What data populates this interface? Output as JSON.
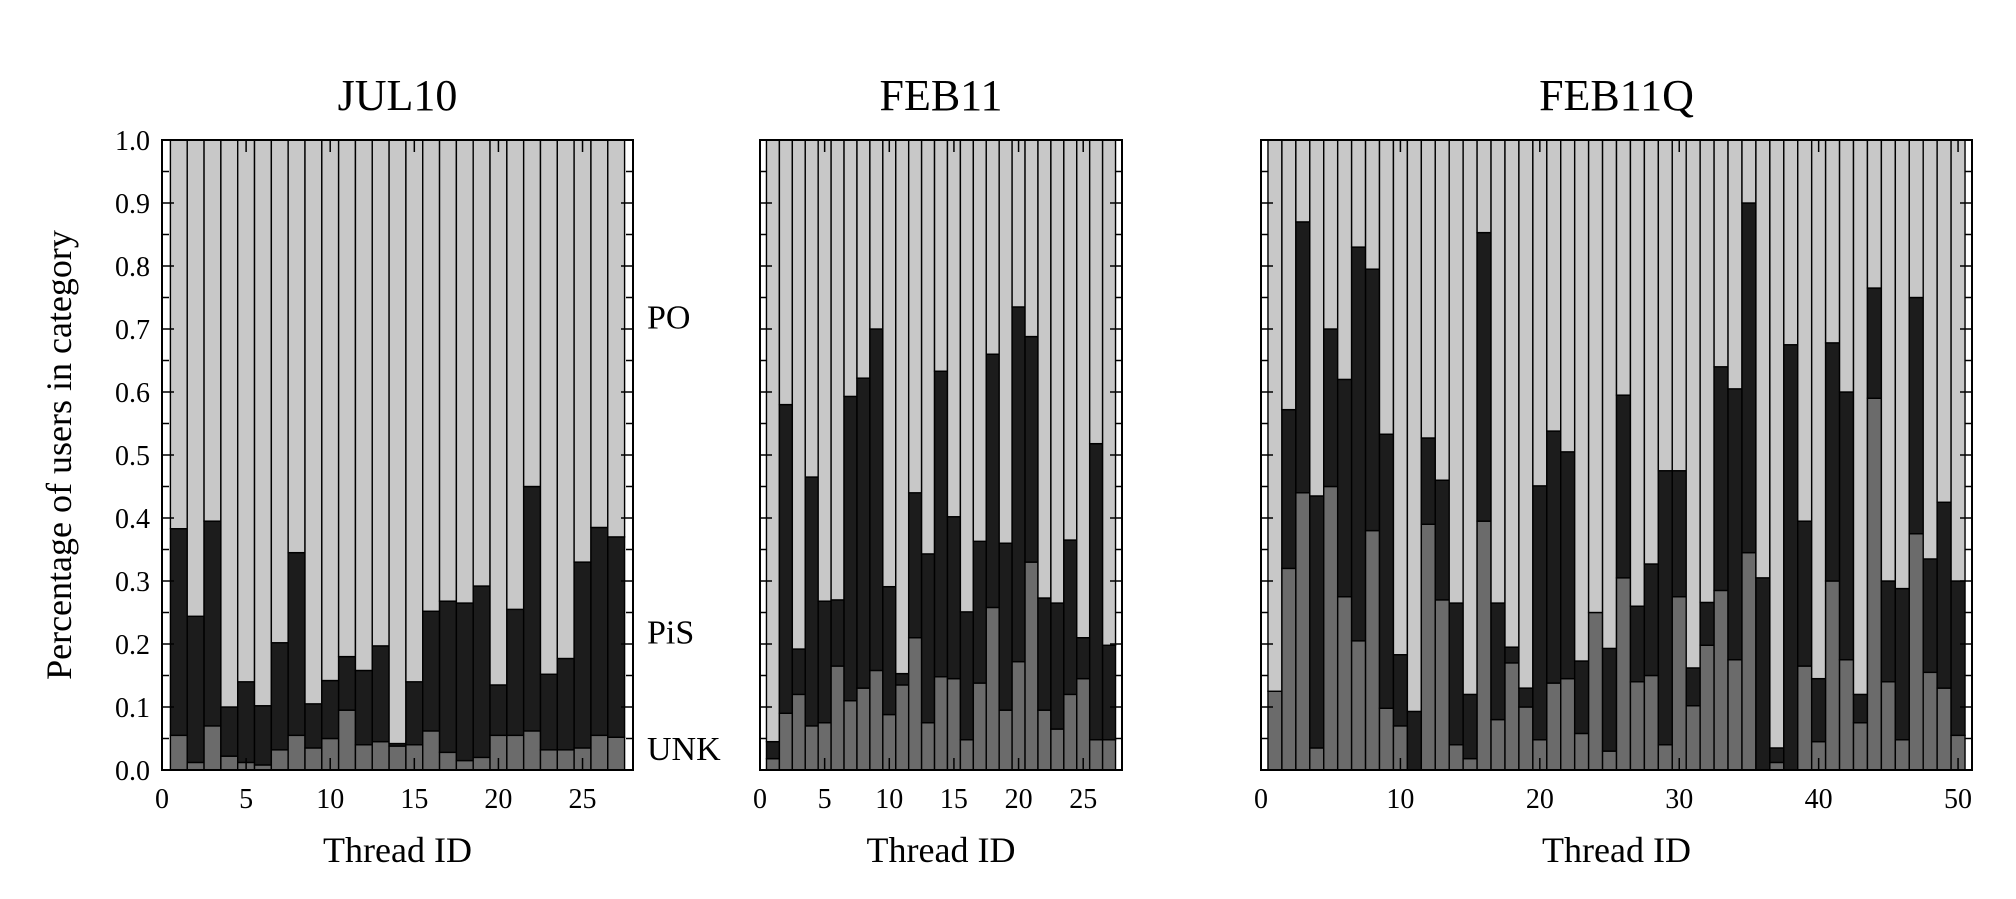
{
  "colors": {
    "PO": "#c8c8c8",
    "PiS": "#1c1c1c",
    "UNK": "#6b6b6b",
    "edge": "#000000"
  },
  "ylabel": "Percentage of users in category",
  "category_labels": [
    {
      "name": "PO",
      "y": 0.72
    },
    {
      "name": "PiS",
      "y": 0.22
    },
    {
      "name": "UNK",
      "y": 0.035
    }
  ],
  "chart_data": [
    {
      "type": "bar",
      "stacked": true,
      "title": "JUL10",
      "xlabel": "Thread ID",
      "ylabel": "Percentage of users in category",
      "xlim": [
        0,
        28
      ],
      "ylim": [
        0,
        1
      ],
      "x_ticks": [
        0,
        5,
        10,
        15,
        20,
        25
      ],
      "y_ticks": [
        "0.0",
        "0.1",
        "0.2",
        "0.3",
        "0.4",
        "0.5",
        "0.6",
        "0.7",
        "0.8",
        "0.9",
        "1.0"
      ],
      "grid": false,
      "thread_ids": [
        1,
        2,
        3,
        4,
        5,
        6,
        7,
        8,
        9,
        10,
        11,
        12,
        13,
        14,
        15,
        16,
        17,
        18,
        19,
        20,
        21,
        22,
        23,
        24,
        25,
        26,
        27
      ],
      "series": [
        {
          "name": "UNK",
          "values": [
            0.055,
            0.012,
            0.07,
            0.022,
            0.012,
            0.008,
            0.032,
            0.055,
            0.035,
            0.05,
            0.095,
            0.04,
            0.045,
            0.038,
            0.04,
            0.062,
            0.028,
            0.015,
            0.02,
            0.055,
            0.055,
            0.062,
            0.032,
            0.032,
            0.035,
            0.055,
            0.052
          ]
        },
        {
          "name": "PiS",
          "values": [
            0.328,
            0.232,
            0.325,
            0.078,
            0.128,
            0.094,
            0.17,
            0.29,
            0.07,
            0.092,
            0.085,
            0.118,
            0.152,
            0.004,
            0.1,
            0.19,
            0.24,
            0.25,
            0.272,
            0.08,
            0.2,
            0.388,
            0.12,
            0.145,
            0.295,
            0.33,
            0.318
          ]
        },
        {
          "name": "PO",
          "values": [
            0.617,
            0.756,
            0.605,
            0.9,
            0.86,
            0.898,
            0.798,
            0.655,
            0.895,
            0.858,
            0.82,
            0.842,
            0.803,
            0.958,
            0.86,
            0.748,
            0.732,
            0.735,
            0.708,
            0.865,
            0.745,
            0.55,
            0.848,
            0.823,
            0.67,
            0.615,
            0.63
          ]
        }
      ]
    },
    {
      "type": "bar",
      "stacked": true,
      "title": "FEB11",
      "xlabel": "Thread ID",
      "ylabel": "",
      "xlim": [
        0,
        28
      ],
      "ylim": [
        0,
        1
      ],
      "x_ticks": [
        0,
        5,
        10,
        15,
        20,
        25
      ],
      "grid": false,
      "thread_ids": [
        1,
        2,
        3,
        4,
        5,
        6,
        7,
        8,
        9,
        10,
        11,
        12,
        13,
        14,
        15,
        16,
        17,
        18,
        19,
        20,
        21,
        22,
        23,
        24,
        25,
        26,
        27
      ],
      "series": [
        {
          "name": "UNK",
          "values": [
            0.018,
            0.09,
            0.12,
            0.07,
            0.075,
            0.165,
            0.11,
            0.13,
            0.158,
            0.088,
            0.135,
            0.21,
            0.075,
            0.148,
            0.145,
            0.048,
            0.138,
            0.258,
            0.095,
            0.172,
            0.33,
            0.095,
            0.065,
            0.12,
            0.145,
            0.048,
            0.048
          ]
        },
        {
          "name": "PiS",
          "values": [
            0.027,
            0.49,
            0.072,
            0.395,
            0.193,
            0.105,
            0.483,
            0.492,
            0.542,
            0.203,
            0.018,
            0.23,
            0.268,
            0.485,
            0.257,
            0.203,
            0.225,
            0.402,
            0.265,
            0.563,
            0.358,
            0.178,
            0.2,
            0.245,
            0.065,
            0.47,
            0.15
          ]
        },
        {
          "name": "PO",
          "values": [
            0.955,
            0.42,
            0.808,
            0.535,
            0.732,
            0.73,
            0.407,
            0.378,
            0.3,
            0.709,
            0.847,
            0.56,
            0.657,
            0.367,
            0.598,
            0.749,
            0.637,
            0.34,
            0.64,
            0.265,
            0.312,
            0.727,
            0.735,
            0.635,
            0.79,
            0.482,
            0.802
          ]
        }
      ]
    },
    {
      "type": "bar",
      "stacked": true,
      "title": "FEB11Q",
      "xlabel": "Thread ID",
      "ylabel": "",
      "xlim": [
        0,
        51
      ],
      "ylim": [
        0,
        1
      ],
      "x_ticks": [
        0,
        10,
        20,
        30,
        40,
        50
      ],
      "grid": false,
      "thread_ids": [
        1,
        2,
        3,
        4,
        5,
        6,
        7,
        8,
        9,
        10,
        11,
        12,
        13,
        14,
        15,
        16,
        17,
        18,
        19,
        20,
        21,
        22,
        23,
        24,
        25,
        26,
        27,
        28,
        29,
        30,
        31,
        32,
        33,
        34,
        35,
        36,
        37,
        38,
        39,
        40,
        41,
        42,
        43,
        44,
        45,
        46,
        47,
        48,
        49,
        50
      ],
      "series": [
        {
          "name": "UNK",
          "values": [
            0.125,
            0.32,
            0.44,
            0.035,
            0.45,
            0.275,
            0.205,
            0.38,
            0.098,
            0.07,
            0.0,
            0.39,
            0.27,
            0.04,
            0.018,
            0.395,
            0.08,
            0.17,
            0.1,
            0.048,
            0.138,
            0.145,
            0.058,
            0.25,
            0.03,
            0.305,
            0.14,
            0.15,
            0.04,
            0.275,
            0.102,
            0.198,
            0.285,
            0.175,
            0.345,
            0.0,
            0.012,
            0.0,
            0.165,
            0.045,
            0.3,
            0.175,
            0.075,
            0.59,
            0.14,
            0.048,
            0.375,
            0.155,
            0.13,
            0.055
          ]
        },
        {
          "name": "PiS",
          "values": [
            0.0,
            0.252,
            0.43,
            0.4,
            0.25,
            0.345,
            0.625,
            0.415,
            0.435,
            0.113,
            0.093,
            0.137,
            0.19,
            0.225,
            0.102,
            0.458,
            0.185,
            0.025,
            0.03,
            0.403,
            0.4,
            0.36,
            0.115,
            0.0,
            0.163,
            0.29,
            0.12,
            0.177,
            0.435,
            0.2,
            0.06,
            0.068,
            0.355,
            0.43,
            0.555,
            0.305,
            0.023,
            0.675,
            0.23,
            0.1,
            0.378,
            0.425,
            0.045,
            0.175,
            0.16,
            0.24,
            0.375,
            0.18,
            0.295,
            0.245
          ]
        },
        {
          "name": "PO",
          "values": [
            0.875,
            0.428,
            0.13,
            0.565,
            0.3,
            0.38,
            0.17,
            0.205,
            0.467,
            0.817,
            0.907,
            0.473,
            0.54,
            0.735,
            0.88,
            0.147,
            0.735,
            0.805,
            0.87,
            0.549,
            0.462,
            0.495,
            0.827,
            0.75,
            0.807,
            0.405,
            0.74,
            0.673,
            0.525,
            0.525,
            0.838,
            0.734,
            0.36,
            0.395,
            0.1,
            0.695,
            0.965,
            0.325,
            0.605,
            0.855,
            0.322,
            0.4,
            0.88,
            0.235,
            0.7,
            0.712,
            0.25,
            0.665,
            0.575,
            0.7
          ]
        }
      ]
    }
  ]
}
